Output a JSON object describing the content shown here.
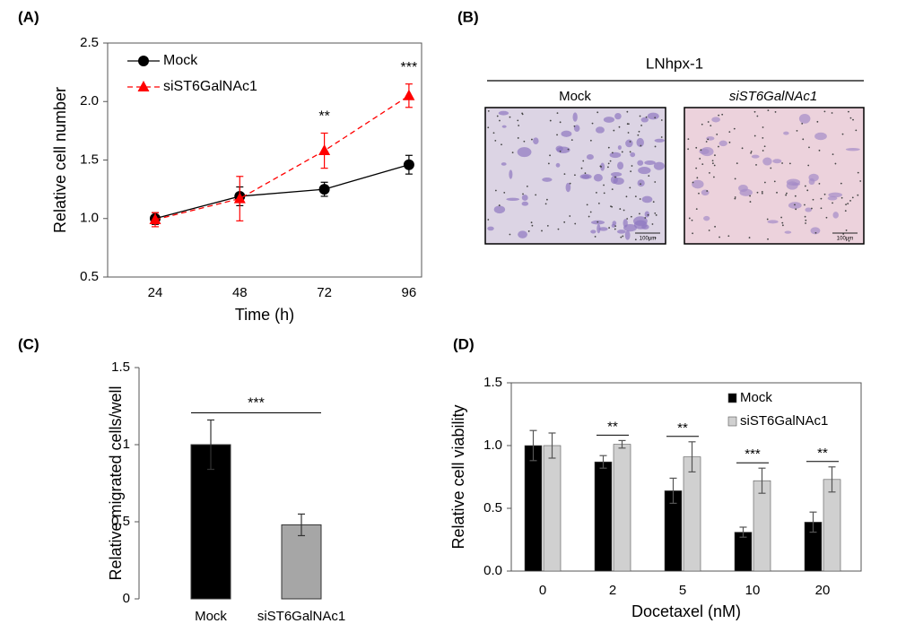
{
  "chart_data": [
    {
      "type": "line",
      "panel_label": "(A)",
      "x_label": "Time (h)",
      "y_label": "Relative cell number",
      "categories": [
        "24",
        "48",
        "72",
        "96"
      ],
      "ylim": [
        0.5,
        2.5
      ],
      "yticks": [
        0.5,
        {
          "value": 1,
          "label": "1.0"
        },
        1.5,
        {
          "value": 2,
          "label": "2.0"
        },
        2.5
      ],
      "legend": "upper left",
      "series": [
        {
          "name": "Mock",
          "color": "#000000",
          "marker": "circle",
          "dash": false,
          "values": [
            1.0,
            1.19,
            1.25,
            1.46
          ],
          "errors": [
            0.05,
            0.08,
            0.06,
            0.08
          ]
        },
        {
          "name": "siST6GalNAc1",
          "color": "#ff0000",
          "marker": "triangle",
          "dash": true,
          "values": [
            0.99,
            1.17,
            1.58,
            2.05
          ],
          "errors": [
            0.06,
            0.19,
            0.15,
            0.1
          ]
        }
      ],
      "annotations": [
        {
          "category": "72",
          "text": "**"
        },
        {
          "category": "96",
          "text": "***"
        }
      ]
    },
    {
      "type": "bar",
      "panel_label": "(C)",
      "y_label": "Relative migrated cells/well",
      "categories": [
        "Mock",
        "siST6GalNAc1"
      ],
      "values": [
        1.0,
        0.48
      ],
      "errors": [
        0.16,
        0.07
      ],
      "colors": [
        "#000000",
        "#a6a6a6"
      ],
      "ylim": [
        0,
        1.5
      ],
      "yticks": [
        0,
        0.5,
        1,
        1.5
      ],
      "annotations": [
        {
          "text": "***"
        }
      ]
    },
    {
      "type": "grouped_bar",
      "panel_label": "(D)",
      "x_label": "Docetaxel (nM)",
      "y_label": "Relative  cell viability",
      "categories": [
        "0",
        "2",
        "5",
        "10",
        "20"
      ],
      "ylim": [
        0,
        1.5
      ],
      "yticks": [
        {
          "value": 0,
          "label": "0.0"
        },
        0.5,
        {
          "value": 1,
          "label": "1.0"
        },
        1.5
      ],
      "legend": "upper right",
      "series": [
        {
          "name": "Mock",
          "color": "#000000",
          "values": [
            1.0,
            0.87,
            0.64,
            0.31,
            0.39
          ],
          "errors": [
            0.12,
            0.05,
            0.1,
            0.04,
            0.08
          ]
        },
        {
          "name": "siST6GalNAc1",
          "color": "#d0d0d0",
          "values": [
            1.0,
            1.01,
            0.91,
            0.72,
            0.73
          ],
          "errors": [
            0.1,
            0.03,
            0.12,
            0.1,
            0.1
          ]
        }
      ],
      "annotations": [
        {
          "category": "2",
          "text": "**"
        },
        {
          "category": "5",
          "text": "**"
        },
        {
          "category": "10",
          "text": "***"
        },
        {
          "category": "20",
          "text": "**"
        }
      ]
    }
  ],
  "panel_b": {
    "panel_label": "(B)",
    "title": "LNhpx-1",
    "images": [
      {
        "label": "Mock",
        "scale_bar": "100μm"
      },
      {
        "label": "siST6GalNAc1",
        "scale_bar": "100μm"
      }
    ]
  }
}
